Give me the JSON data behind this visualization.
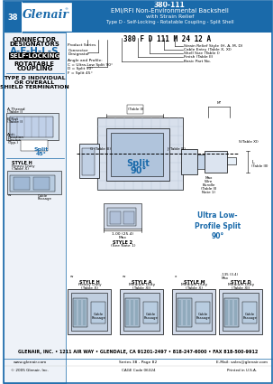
{
  "title_number": "380-111",
  "title_line1": "EMI/RFI Non-Environmental Backshell",
  "title_line2": "with Strain Relief",
  "title_line3": "Type D - Self-Locking - Rotatable Coupling - Split Shell",
  "header_bg": "#1a6aaa",
  "header_text_color": "#ffffff",
  "page_bg": "#ffffff",
  "tab_number": "38",
  "designator_letters": "A-F-H-L-S",
  "self_locking": "SELF-LOCKING",
  "part_number_example": "380 F D 111 M 24 12 A",
  "ultra_low_label": "Ultra Low-\nProfile Split\n90°",
  "footer_company": "GLENAIR, INC. • 1211 AIR WAY • GLENDALE, CA 91201-2497 • 818-247-6000 • FAX 818-500-9912",
  "footer_web": "www.glenair.com",
  "footer_series": "Series 38 - Page 82",
  "footer_email": "E-Mail: sales@glenair.com",
  "footer_copyright": "© 2005 Glenair, Inc.",
  "footer_cage": "CAGE Code 06324",
  "footer_country": "Printed in U.S.A.",
  "header_bg_color": "#1a6aaa",
  "accent_blue": "#1a6aaa",
  "split90_color": "#1a6aaa",
  "ultra_low_color": "#1a6aaa"
}
